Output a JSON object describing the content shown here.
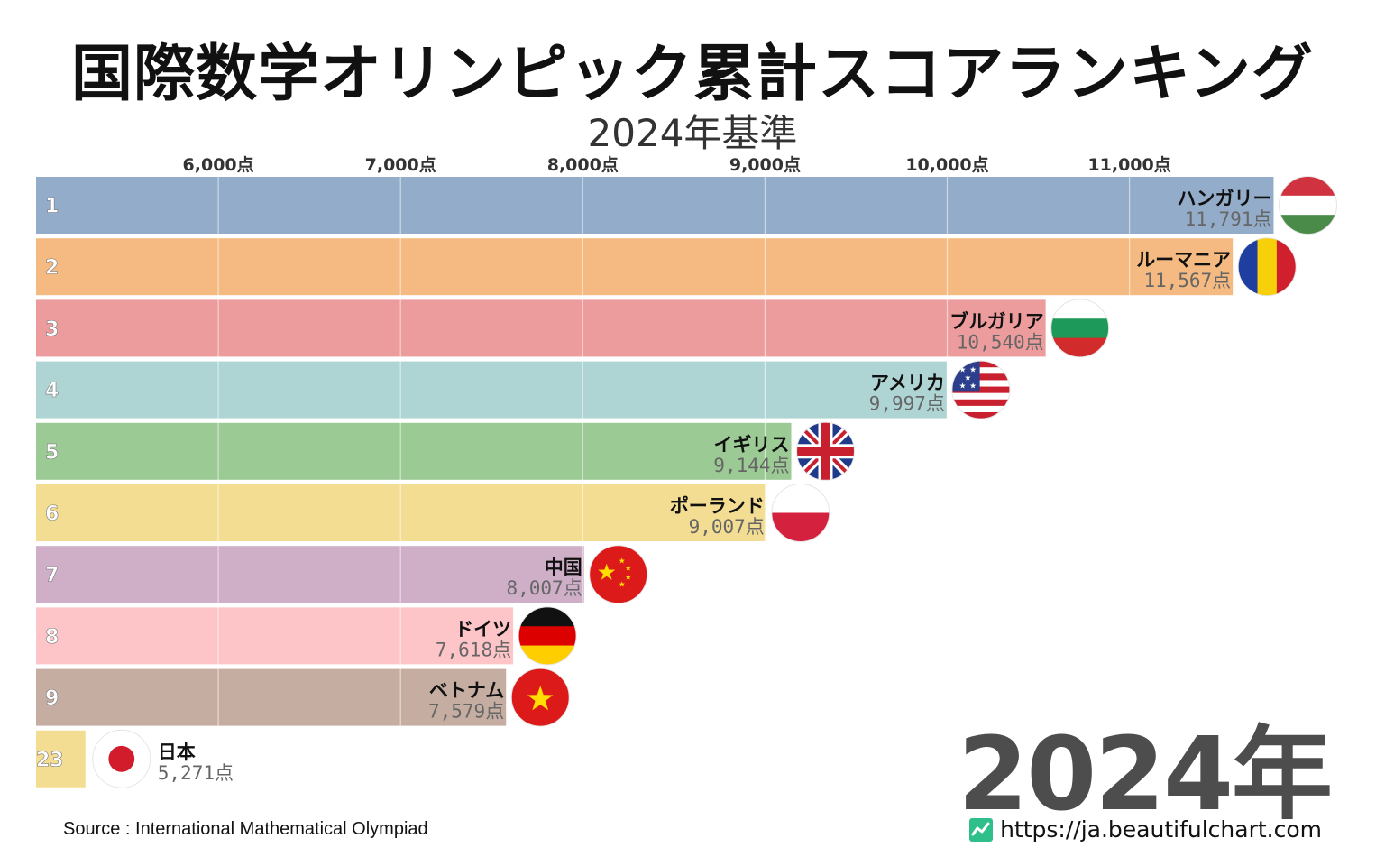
{
  "header": {
    "title": "国際数学オリンピック累計スコアランキング",
    "subtitle": "2024年基準"
  },
  "footer": {
    "source": "Source : International Mathematical Olympiad",
    "site": "https://ja.beautifulchart.com",
    "site_icon": "chart-line-icon",
    "year": "2024年"
  },
  "chart_data": {
    "type": "bar",
    "orientation": "horizontal",
    "xlim": [
      5000,
      12000
    ],
    "ticks": [
      6000,
      7000,
      8000,
      9000,
      10000,
      11000
    ],
    "tick_labels": [
      "6,000点",
      "7,000点",
      "8,000点",
      "9,000点",
      "10,000点",
      "11,000点"
    ],
    "grid": true,
    "bars": [
      {
        "rank": "1",
        "name": "ハンガリー",
        "value": 11791,
        "value_label": "11,791点",
        "color": "#93acc9",
        "flag": "hungary-flag-icon"
      },
      {
        "rank": "2",
        "name": "ルーマニア",
        "value": 11567,
        "value_label": "11,567点",
        "color": "#f5ba82",
        "flag": "romania-flag-icon"
      },
      {
        "rank": "3",
        "name": "ブルガリア",
        "value": 10540,
        "value_label": "10,540点",
        "color": "#ec9c9c",
        "flag": "bulgaria-flag-icon"
      },
      {
        "rank": "4",
        "name": "アメリカ",
        "value": 9997,
        "value_label": "9,997点",
        "color": "#aed5d3",
        "flag": "usa-flag-icon"
      },
      {
        "rank": "5",
        "name": "イギリス",
        "value": 9144,
        "value_label": "9,144点",
        "color": "#9cca94",
        "flag": "uk-flag-icon"
      },
      {
        "rank": "6",
        "name": "ポーランド",
        "value": 9007,
        "value_label": "9,007点",
        "color": "#f3dd92",
        "flag": "poland-flag-icon"
      },
      {
        "rank": "7",
        "name": "中国",
        "value": 8007,
        "value_label": "8,007点",
        "color": "#cfaec8",
        "flag": "china-flag-icon"
      },
      {
        "rank": "8",
        "name": "ドイツ",
        "value": 7618,
        "value_label": "7,618点",
        "color": "#fec5c9",
        "flag": "germany-flag-icon"
      },
      {
        "rank": "9",
        "name": "ベトナム",
        "value": 7579,
        "value_label": "7,579点",
        "color": "#c5ada1",
        "flag": "vietnam-flag-icon"
      },
      {
        "rank": "23",
        "name": "日本",
        "value": 5271,
        "value_label": "5,271点",
        "color": "#f3dd92",
        "flag": "japan-flag-icon"
      }
    ]
  }
}
